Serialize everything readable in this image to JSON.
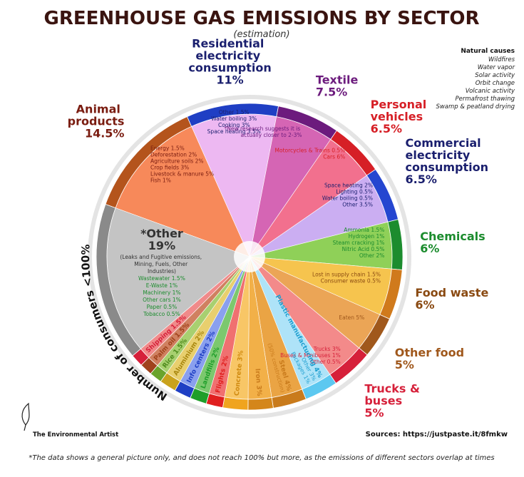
{
  "chart_data": {
    "type": "pie",
    "title": "GREENHOUSE GAS EMISSIONS BY SECTOR",
    "subtitle": "(estimation)",
    "axis_label": "Number of consumers <100%",
    "sectors": [
      {
        "name": "Animal products",
        "value": 14.5,
        "value_label": "14.5%",
        "color": "#b4541c",
        "fill": "#f7895a",
        "text_color": "#7a1c10",
        "subs": [
          "Energy 1.5%",
          "Deforestation 2%",
          "Agriculture soils 2%",
          "Crop fields 3%",
          "Livestock & manure 5%",
          "Fish 1%"
        ]
      },
      {
        "name": "Residential electricity consumption",
        "value": 11,
        "value_label": "11%",
        "color": "#1f3fc4",
        "fill": "#edb8f2",
        "text_color": "#1a1f6e",
        "subs": [
          "Other 1.5%",
          "Water boiling 3%",
          "Cooking 3%",
          "Space heating 3.5%"
        ]
      },
      {
        "name": "Textile",
        "value": 7.5,
        "value_label": "7.5%",
        "color": "#6c1b7d",
        "fill": "#d565b4",
        "text_color": "#6c1b7d",
        "subs": [],
        "note": "*New research suggests it is actually closer to 2-3%"
      },
      {
        "name": "Personal vehicles",
        "value": 6.5,
        "value_label": "6.5%",
        "color": "#d61f26",
        "fill": "#f2708e",
        "text_color": "#d61f26",
        "subs": [
          "Motorcycles & Trains 0.5%",
          "Cars 6%"
        ]
      },
      {
        "name": "Commercial electricity consumption",
        "value": 6.5,
        "value_label": "6.5%",
        "color": "#2546d0",
        "fill": "#cbaef2",
        "text_color": "#1a1f6e",
        "subs": [
          "Space heating 2%",
          "Lighting 0.5%",
          "Water boiling 0.5%",
          "Other 3.5%"
        ]
      },
      {
        "name": "Chemicals",
        "value": 6,
        "value_label": "6%",
        "color": "#1c8c2e",
        "fill": "#8fd058",
        "text_color": "#1c8c2e",
        "subs": [
          "Ammonia 1.5%",
          "Hydrogen 1%",
          "Steam cracking 1%",
          "Nitric Acid 0.5%",
          "Other 2%"
        ]
      },
      {
        "name": "Food waste",
        "value": 6,
        "value_label": "6%",
        "color": "#d07a1c",
        "fill": "#f6c44e",
        "text_color": "#8a4a12",
        "subs": [
          "Lost in supply chain 1.5%",
          "Consumer waste 0.5%"
        ]
      },
      {
        "name": "Other food",
        "value": 5,
        "value_label": "5%",
        "color": "#a0581c",
        "fill": "#eba556",
        "text_color": "#a0581c",
        "subs": [
          "Eaten 5%"
        ]
      },
      {
        "name": "Trucks & buses",
        "value": 5,
        "value_label": "5%",
        "color": "#d6203a",
        "fill": "#f38a8a",
        "text_color": "#d6203a",
        "subs": [
          "Trucks 3%",
          "Buses & Minibuses 1%",
          "Other 0.5%"
        ]
      },
      {
        "name": "Plastic manufacturing",
        "value": 4,
        "value_label": "4%",
        "color": "#5cc8f0",
        "fill": "#aee3f8",
        "text_color": "#1e9fd0",
        "subs": [
          "Other 3%",
          "Packages 1%"
        ]
      },
      {
        "name": "Steel",
        "value": 4,
        "value_label": "4%",
        "color": "#c97b1c",
        "fill": "#eaa444",
        "text_color": "#c97b1c",
        "subs": [],
        "note": "(50% construction)"
      },
      {
        "name": "Iron",
        "value": 3,
        "value_label": "3%",
        "color": "#d4861a",
        "fill": "#f2b048",
        "text_color": "#c97b1c",
        "subs": []
      },
      {
        "name": "Concrete",
        "value": 3,
        "value_label": "3%",
        "color": "#f0a41e",
        "fill": "#f8c666",
        "text_color": "#d08a10",
        "subs": []
      },
      {
        "name": "Flights",
        "value": 2,
        "value_label": "2%",
        "color": "#e01f1f",
        "fill": "#f07070",
        "text_color": "#e01f1f",
        "subs": []
      },
      {
        "name": "Landfills",
        "value": 2,
        "value_label": "2%",
        "color": "#1f9e2a",
        "fill": "#7cc86e",
        "text_color": "#1f9e2a",
        "subs": []
      },
      {
        "name": "Info centers",
        "value": 2,
        "value_label": "2%",
        "color": "#1f3fc4",
        "fill": "#8aa0ee",
        "text_color": "#1f3fc4",
        "subs": []
      },
      {
        "name": "Aluminium",
        "value": 2,
        "value_label": "2%",
        "color": "#c9a21c",
        "fill": "#e8cf6e",
        "text_color": "#a8860e",
        "subs": []
      },
      {
        "name": "Rice",
        "value": 1.5,
        "value_label": "1.5%",
        "color": "#6aa42c",
        "fill": "#a8d070",
        "text_color": "#4e8a1c",
        "subs": []
      },
      {
        "name": "Palm oil",
        "value": 1.5,
        "value_label": "1.5%",
        "color": "#a0421c",
        "fill": "#d08060",
        "text_color": "#a0421c",
        "subs": []
      },
      {
        "name": "Shipping",
        "value": 1.5,
        "value_label": "1.5%",
        "color": "#d6203a",
        "fill": "#f08a8a",
        "text_color": "#d6203a",
        "subs": []
      },
      {
        "name": "*Other",
        "value": 19,
        "value_label": "19%",
        "color": "#8a8a8a",
        "fill": "#c4c4c4",
        "text_color": "#333333",
        "subs": [
          "Wastewater 1.5%",
          "E-Waste 1%",
          "Machinery 1%",
          "Other cars 1%",
          "Paper 0.5%",
          "Tobacco 0.5%"
        ],
        "note": "(Leaks and Fugitive emissions, Mining, Fuels, Other Industries)"
      }
    ],
    "natural_causes": {
      "title": "Natural causes",
      "items": [
        "Wildfires",
        "Water vapor",
        "Solar activity",
        "Orbit change",
        "Volcanic activity",
        "Permafrost thawing",
        "Swamp & peatland drying"
      ]
    },
    "brand": "The Environmental Artist",
    "sources": "Sources: https://justpaste.it/8fmkw",
    "footnote": "*The data shows a general picture only, and does not reach 100% but more, as the emissions of different sectors overlap at times"
  }
}
